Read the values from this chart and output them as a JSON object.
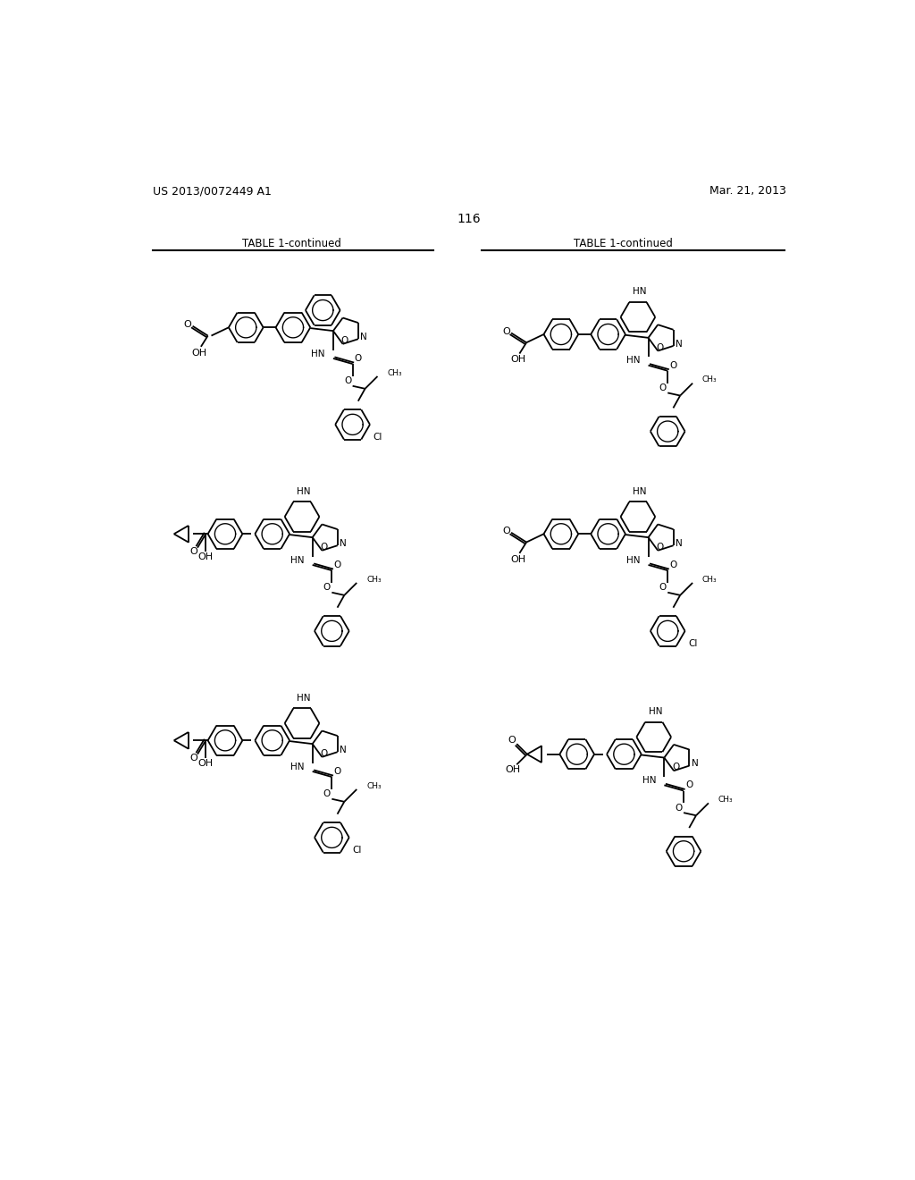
{
  "page_number": "116",
  "patent_number": "US 2013/0072449 A1",
  "patent_date": "Mar. 21, 2013",
  "table_label": "TABLE 1-continued",
  "background_color": "#ffffff",
  "text_color": "#000000"
}
